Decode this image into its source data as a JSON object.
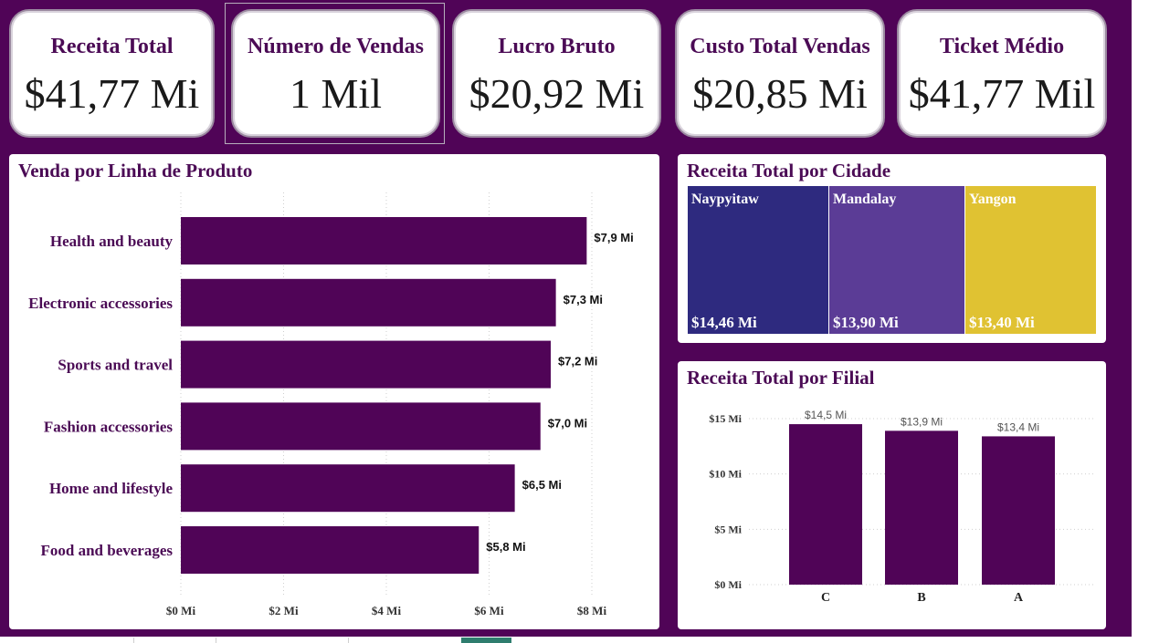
{
  "kpis": [
    {
      "title": "Receita Total",
      "value": "$41,77 Mi"
    },
    {
      "title": "Número de Vendas",
      "value": "1 Mil"
    },
    {
      "title": "Lucro Bruto",
      "value": "$20,92 Mi"
    },
    {
      "title": "Custo Total Vendas",
      "value": "$20,85 Mi"
    },
    {
      "title": "Ticket Médio",
      "value": "$41,77 Mil"
    }
  ],
  "colors": {
    "background": "#500457",
    "bar": "#500457",
    "title": "#4b0b55",
    "naypyitaw": "#2e2a7f",
    "mandalay": "#5b3c96",
    "yangon": "#e0c232"
  },
  "product_panel": {
    "title": "Venda por Linha de Produto"
  },
  "city_panel": {
    "title": "Receita Total por Cidade"
  },
  "branch_panel": {
    "title": "Receita Total por Filial"
  },
  "chart_data": [
    {
      "type": "bar",
      "orientation": "horizontal",
      "title": "Venda por Linha de Produto",
      "categories": [
        "Health and beauty",
        "Electronic accessories",
        "Sports and travel",
        "Fashion accessories",
        "Home and lifestyle",
        "Food and beverages"
      ],
      "values": [
        7.9,
        7.3,
        7.2,
        7.0,
        6.5,
        5.8
      ],
      "value_labels": [
        "$7,9 Mi",
        "$7,3 Mi",
        "$7,2 Mi",
        "$7,0 Mi",
        "$6,5 Mi",
        "$5,8 Mi"
      ],
      "x_ticks": [
        "$0 Mi",
        "$2 Mi",
        "$4 Mi",
        "$6 Mi",
        "$8 Mi"
      ],
      "xlim": [
        0,
        8
      ],
      "grid": "vertical dotted"
    },
    {
      "type": "treemap",
      "title": "Receita Total por Cidade",
      "categories": [
        "Naypyitaw",
        "Mandalay",
        "Yangon"
      ],
      "values": [
        14.46,
        13.9,
        13.4
      ],
      "value_labels": [
        "$14,46 Mi",
        "$13,90 Mi",
        "$13,40 Mi"
      ]
    },
    {
      "type": "bar",
      "orientation": "vertical",
      "title": "Receita Total por Filial",
      "categories": [
        "C",
        "B",
        "A"
      ],
      "values": [
        14.5,
        13.9,
        13.4
      ],
      "value_labels": [
        "$14,5 Mi",
        "$13,9 Mi",
        "$13,4 Mi"
      ],
      "y_ticks": [
        "$0 Mi",
        "$5 Mi",
        "$10 Mi",
        "$15 Mi"
      ],
      "ylim": [
        0,
        15
      ],
      "grid": "horizontal dotted"
    }
  ]
}
